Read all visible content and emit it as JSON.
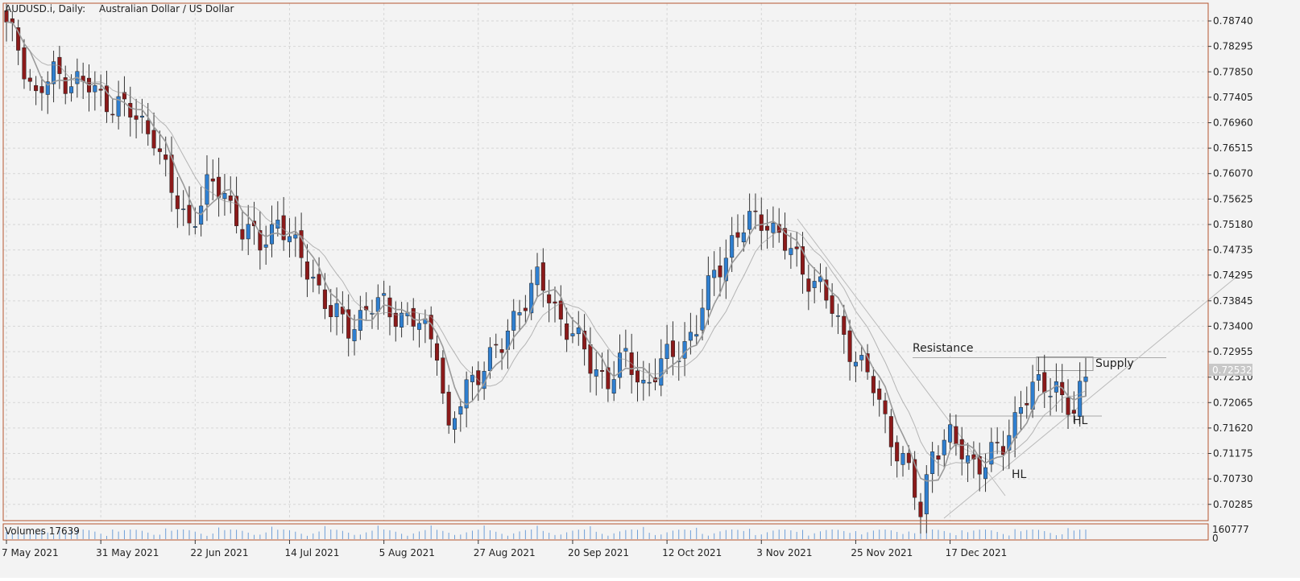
{
  "header": {
    "symbol_label": "AUDUSD.i, Daily:",
    "description": "Australian Dollar / US Dollar"
  },
  "volume_label": "Volumes 17639",
  "volume_axis": {
    "max_label": "160777",
    "min_label": "0"
  },
  "current_price_label": "0.72532",
  "colors": {
    "bull": "#2f7fd0",
    "bear": "#8b1a1a",
    "wick": "#333333",
    "ma": "#9a9a9a",
    "grid": "#d6d6d6",
    "frame": "#b5562f",
    "volume": "#6f9fd8"
  },
  "annotations": [
    {
      "text": "Resistance",
      "id": "resistance"
    },
    {
      "text": "Supply",
      "id": "supply"
    },
    {
      "text": "HL",
      "id": "hl-1"
    },
    {
      "text": "HL",
      "id": "hl-2"
    }
  ],
  "chart_data": {
    "type": "candlestick",
    "title": "",
    "y_axis": {
      "range": [
        0.7,
        0.7905
      ],
      "ticks": [
        "0.78740",
        "0.78295",
        "0.77850",
        "0.77405",
        "0.76960",
        "0.76515",
        "0.76070",
        "0.75625",
        "0.75180",
        "0.74735",
        "0.74295",
        "0.73845",
        "0.73400",
        "0.72955",
        "0.72510",
        "0.72065",
        "0.71620",
        "0.71175",
        "0.70730",
        "0.70285"
      ]
    },
    "x_axis": {
      "labels": [
        "7 May 2021",
        "31 May 2021",
        "22 Jun 2021",
        "14 Jul 2021",
        "5 Aug 2021",
        "27 Aug 2021",
        "20 Sep 2021",
        "12 Oct 2021",
        "3 Nov 2021",
        "25 Nov 2021",
        "17 Dec 2021"
      ],
      "label_index": [
        0,
        16,
        32,
        48,
        64,
        80,
        96,
        112,
        128,
        144,
        160
      ]
    },
    "grid": true,
    "anchors": [
      [
        0,
        0.786
      ],
      [
        2,
        0.783
      ],
      [
        5,
        0.774
      ],
      [
        8,
        0.778
      ],
      [
        12,
        0.777
      ],
      [
        16,
        0.774
      ],
      [
        19,
        0.773
      ],
      [
        22,
        0.77
      ],
      [
        25,
        0.768
      ],
      [
        28,
        0.757
      ],
      [
        31,
        0.752
      ],
      [
        34,
        0.758
      ],
      [
        37,
        0.7575
      ],
      [
        40,
        0.751
      ],
      [
        43,
        0.748
      ],
      [
        46,
        0.753
      ],
      [
        49,
        0.747
      ],
      [
        52,
        0.743
      ],
      [
        55,
        0.736
      ],
      [
        58,
        0.734
      ],
      [
        61,
        0.737
      ],
      [
        64,
        0.7375
      ],
      [
        67,
        0.736
      ],
      [
        70,
        0.734
      ],
      [
        73,
        0.731
      ],
      [
        75,
        0.715
      ],
      [
        78,
        0.723
      ],
      [
        81,
        0.728
      ],
      [
        84,
        0.73
      ],
      [
        87,
        0.738
      ],
      [
        90,
        0.742
      ],
      [
        93,
        0.737
      ],
      [
        96,
        0.733
      ],
      [
        99,
        0.727
      ],
      [
        102,
        0.725
      ],
      [
        105,
        0.728
      ],
      [
        108,
        0.724
      ],
      [
        111,
        0.727
      ],
      [
        114,
        0.73
      ],
      [
        117,
        0.734
      ],
      [
        120,
        0.743
      ],
      [
        123,
        0.749
      ],
      [
        126,
        0.752
      ],
      [
        129,
        0.753
      ],
      [
        132,
        0.748
      ],
      [
        135,
        0.744
      ],
      [
        138,
        0.741
      ],
      [
        141,
        0.734
      ],
      [
        144,
        0.729
      ],
      [
        147,
        0.723
      ],
      [
        150,
        0.715
      ],
      [
        153,
        0.708
      ],
      [
        155,
        0.701
      ],
      [
        157,
        0.713
      ],
      [
        160,
        0.714
      ],
      [
        163,
        0.711
      ],
      [
        166,
        0.71
      ],
      [
        169,
        0.713
      ],
      [
        172,
        0.721
      ],
      [
        175,
        0.723
      ],
      [
        178,
        0.724
      ],
      [
        181,
        0.718
      ],
      [
        183,
        0.725
      ]
    ],
    "candle_count": 184,
    "moving_averages": [
      {
        "period": 5
      },
      {
        "period": 10
      }
    ],
    "resistance_level": 0.7285,
    "support_level": 0.7183
  }
}
